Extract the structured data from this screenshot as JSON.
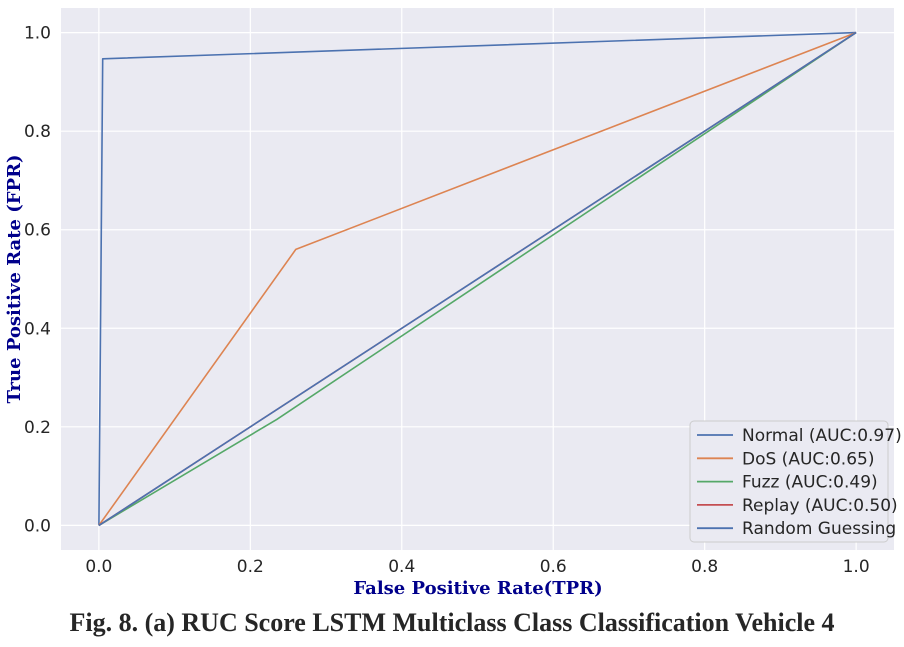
{
  "caption": "Fig. 8. (a) RUC Score LSTM Multiclass Class Classification Vehicle 4",
  "chart_data": {
    "type": "line",
    "xlabel": "False Positive Rate(TPR)",
    "ylabel": "True Positive Rate (FPR)",
    "xlim": [
      -0.05,
      1.05
    ],
    "ylim": [
      -0.05,
      1.05
    ],
    "xticks": [
      0.0,
      0.2,
      0.4,
      0.6,
      0.8,
      1.0
    ],
    "yticks": [
      0.0,
      0.2,
      0.4,
      0.6,
      0.8,
      1.0
    ],
    "xtick_labels": [
      "0.0",
      "0.2",
      "0.4",
      "0.6",
      "0.8",
      "1.0"
    ],
    "ytick_labels": [
      "0.0",
      "0.2",
      "0.4",
      "0.6",
      "0.8",
      "1.0"
    ],
    "grid": true,
    "legend_position": "lower-right",
    "series": [
      {
        "name": "Normal (AUC:0.97)",
        "color": "#4c72b0",
        "x": [
          0.0,
          0.005,
          1.0
        ],
        "y": [
          0.0,
          0.947,
          1.0
        ]
      },
      {
        "name": "DoS (AUC:0.65)",
        "color": "#dd8452",
        "x": [
          0.0,
          0.26,
          1.0
        ],
        "y": [
          0.0,
          0.56,
          1.0
        ]
      },
      {
        "name": "Fuzz (AUC:0.49)",
        "color": "#55a868",
        "x": [
          0.0,
          0.235,
          1.0
        ],
        "y": [
          0.0,
          0.215,
          1.0
        ]
      },
      {
        "name": "Replay (AUC:0.50)",
        "color": "#c44e52",
        "x": [
          0.0,
          0.5,
          1.0
        ],
        "y": [
          0.0,
          0.5,
          1.0
        ]
      },
      {
        "name": "Random Guessing",
        "color": "#4c72b0",
        "x": [
          0.0,
          1.0
        ],
        "y": [
          0.0,
          1.0
        ]
      }
    ]
  }
}
